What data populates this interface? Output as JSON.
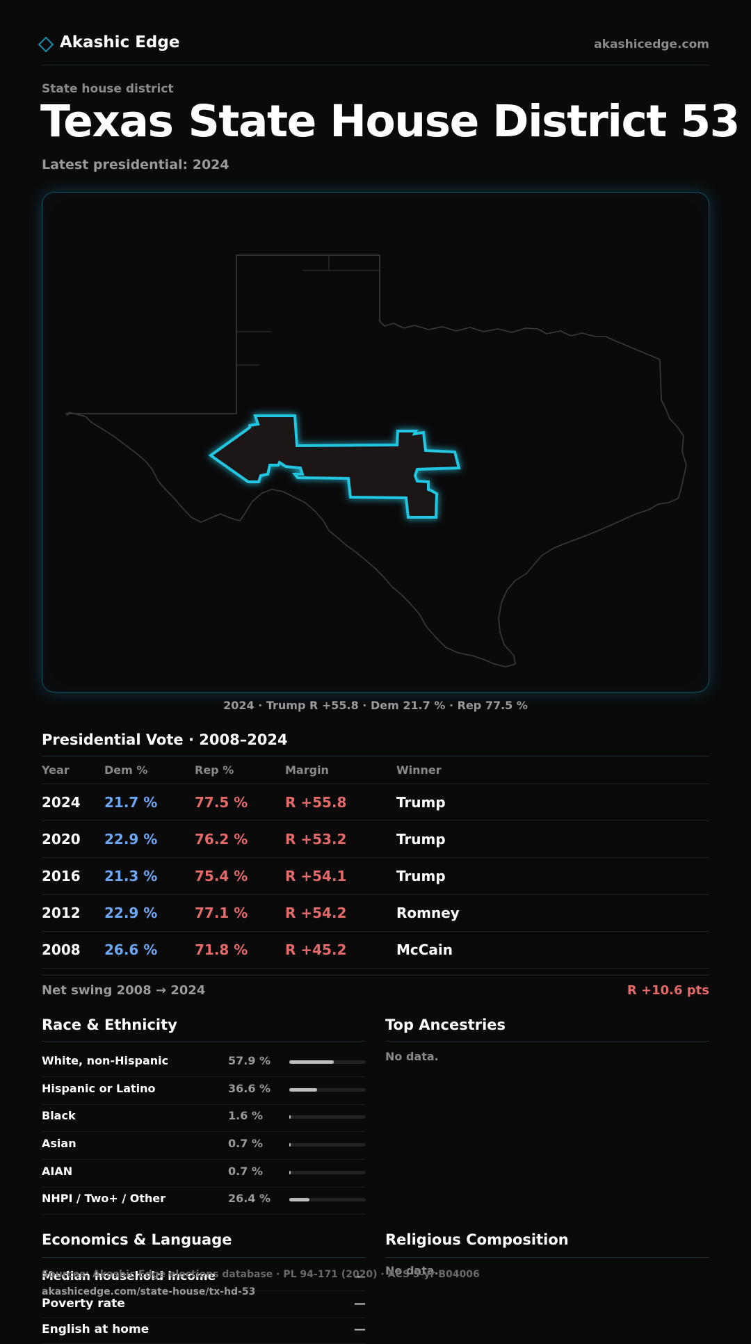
{
  "brand": {
    "name": "Akashic Edge",
    "site": "akashicedge.com",
    "accent": "#1a8fa8"
  },
  "header": {
    "eyebrow": "State house district",
    "title_state": "Texas",
    "title_district": "State House District 53",
    "subtitle": "Latest presidential: 2024"
  },
  "map": {
    "caption": "2024 · Trump R +55.8 · Dem 21.7 % · Rep 77.5 %",
    "highlight_color": "#21c6e0"
  },
  "presidential": {
    "title": "Presidential Vote · 2008–2024",
    "columns": [
      "Year",
      "Dem %",
      "Rep %",
      "Margin",
      "Winner"
    ],
    "rows": [
      {
        "year": "2024",
        "dem": "21.7 %",
        "rep": "77.5 %",
        "margin": "R +55.8",
        "winner": "Trump"
      },
      {
        "year": "2020",
        "dem": "22.9 %",
        "rep": "76.2 %",
        "margin": "R +53.2",
        "winner": "Trump"
      },
      {
        "year": "2016",
        "dem": "21.3 %",
        "rep": "75.4 %",
        "margin": "R +54.1",
        "winner": "Trump"
      },
      {
        "year": "2012",
        "dem": "22.9 %",
        "rep": "77.1 %",
        "margin": "R +54.2",
        "winner": "Romney"
      },
      {
        "year": "2008",
        "dem": "26.6 %",
        "rep": "71.8 %",
        "margin": "R +45.2",
        "winner": "McCain"
      }
    ],
    "swing_label": "Net swing 2008 → 2024",
    "swing_value": "R +10.6 pts",
    "dem_color": "#6ea8f5",
    "rep_color": "#e46a6a"
  },
  "race": {
    "title": "Race & Ethnicity",
    "rows": [
      {
        "label": "White, non-Hispanic",
        "value": "57.9 %",
        "share": 0.579
      },
      {
        "label": "Hispanic or Latino",
        "value": "36.6 %",
        "share": 0.366
      },
      {
        "label": "Black",
        "value": "1.6 %",
        "share": 0.016
      },
      {
        "label": "Asian",
        "value": "0.7 %",
        "share": 0.007
      },
      {
        "label": "AIAN",
        "value": "0.7 %",
        "share": 0.007
      },
      {
        "label": "NHPI / Two+ / Other",
        "value": "26.4 %",
        "share": 0.264
      }
    ]
  },
  "ancestry": {
    "title": "Top Ancestries",
    "empty": "No data."
  },
  "economics": {
    "title": "Economics & Language",
    "rows": [
      {
        "label": "Median household income",
        "value": "—"
      },
      {
        "label": "Poverty rate",
        "value": "—"
      },
      {
        "label": "English at home",
        "value": "—"
      }
    ]
  },
  "religion": {
    "title": "Religious Composition",
    "empty": "No data."
  },
  "footer": {
    "sources": "Sources: Akashic Edge elections database · PL 94-171 (2020) · ACS 5-yr B04006",
    "url": "akashicedge.com/state-house/tx-hd-53"
  }
}
